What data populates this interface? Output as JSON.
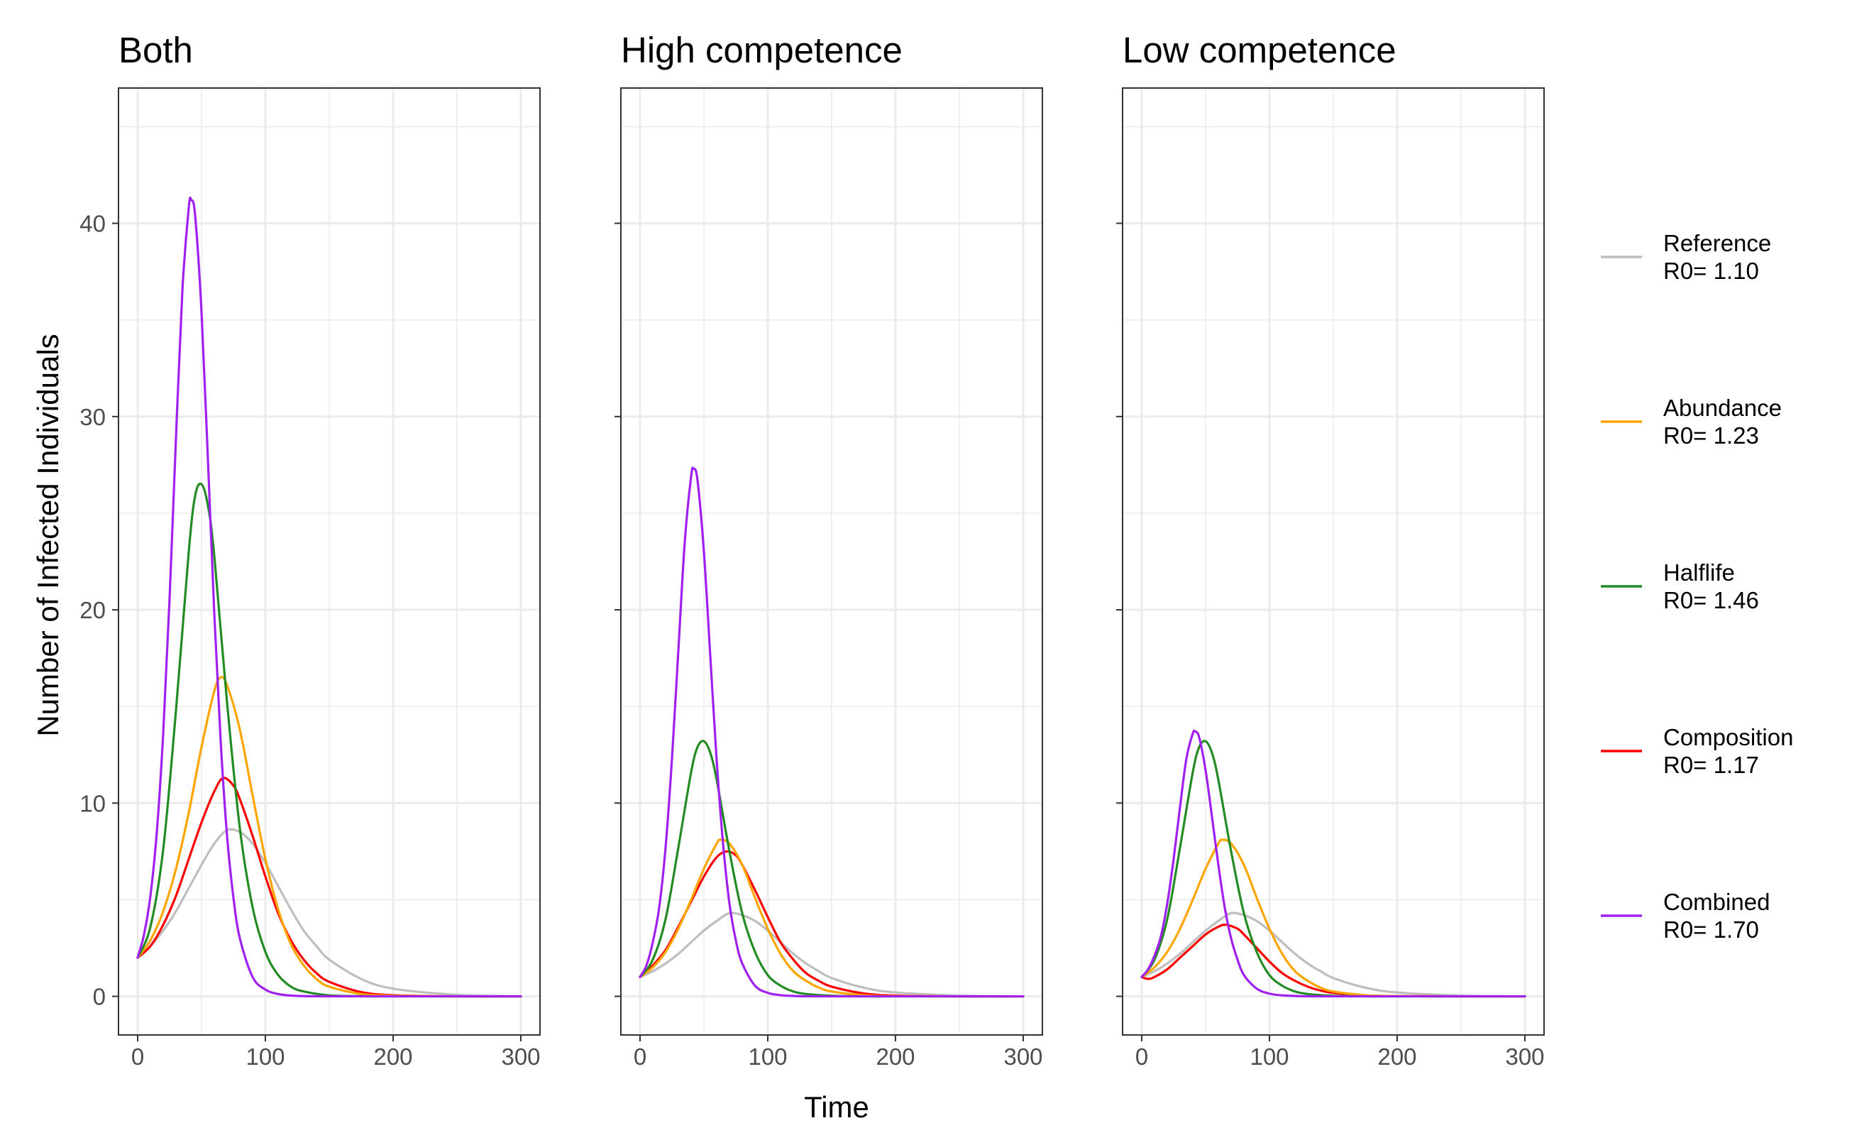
{
  "chart_data": {
    "type": "line",
    "xlabel": "Time",
    "ylabel": "Number of Infected Individuals",
    "xlim": [
      -15,
      315
    ],
    "ylim": [
      -2,
      47
    ],
    "x_ticks": [
      0,
      100,
      200,
      300
    ],
    "y_ticks": [
      0,
      10,
      20,
      30,
      40
    ],
    "x_tick_labels": [
      "0",
      "100",
      "200",
      "300"
    ],
    "y_tick_labels": [
      "0",
      "10",
      "20",
      "30",
      "40"
    ],
    "grid": true,
    "legend_position": "right",
    "legend": [
      {
        "line1": "Reference",
        "line2": "R0= 1.10",
        "color": "#bebebe"
      },
      {
        "line1": "Abundance",
        "line2": "R0= 1.23",
        "color": "#ffa500"
      },
      {
        "line1": "Halflife",
        "line2": "R0= 1.46",
        "color": "#228b22"
      },
      {
        "line1": "Composition",
        "line2": "R0= 1.17",
        "color": "#ff0000"
      },
      {
        "line1": "Combined",
        "line2": "R0= 1.70",
        "color": "#a020f0"
      }
    ],
    "panels": [
      {
        "title": "Both",
        "series": [
          {
            "key": "reference",
            "color": "#bebebe",
            "x": [
              0,
              10,
              20,
              30,
              40,
              50,
              60,
              70,
              80,
              90,
              100,
              110,
              120,
              130,
              140,
              150,
              175,
              200,
              250,
              300
            ],
            "y": [
              2.0,
              2.6,
              3.4,
              4.4,
              5.6,
              6.8,
              7.9,
              8.6,
              8.5,
              7.9,
              6.9,
              5.7,
              4.5,
              3.4,
              2.6,
              1.9,
              0.9,
              0.4,
              0.08,
              0.01
            ]
          },
          {
            "key": "abundance",
            "color": "#ffa500",
            "x": [
              0,
              10,
              20,
              30,
              40,
              50,
              60,
              65,
              70,
              80,
              90,
              100,
              110,
              120,
              130,
              140,
              150,
              175,
              200,
              250,
              300
            ],
            "y": [
              2.0,
              2.9,
              4.4,
              6.6,
              9.5,
              12.9,
              15.8,
              16.5,
              16.1,
              13.8,
              10.4,
              7.1,
              4.5,
              2.7,
              1.6,
              0.9,
              0.5,
              0.12,
              0.03,
              0.0,
              0.0
            ]
          },
          {
            "key": "halflife",
            "color": "#228b22",
            "x": [
              0,
              10,
              20,
              30,
              40,
              45,
              50,
              55,
              60,
              70,
              80,
              90,
              100,
              110,
              120,
              130,
              150,
              175,
              200,
              300
            ],
            "y": [
              2.0,
              3.6,
              7.6,
              14.8,
              23.0,
              25.9,
              26.5,
              25.4,
              22.8,
              15.2,
              8.7,
              4.6,
              2.3,
              1.1,
              0.5,
              0.25,
              0.05,
              0.01,
              0.0,
              0.0
            ]
          },
          {
            "key": "composition",
            "color": "#ff0000",
            "x": [
              0,
              10,
              20,
              30,
              40,
              50,
              60,
              67,
              75,
              80,
              90,
              100,
              110,
              120,
              130,
              140,
              150,
              175,
              200,
              250,
              300
            ],
            "y": [
              2.0,
              2.6,
              3.7,
              5.2,
              7.1,
              9.0,
              10.6,
              11.3,
              10.9,
              10.2,
              8.3,
              6.2,
              4.3,
              2.9,
              1.9,
              1.2,
              0.75,
              0.22,
              0.06,
              0.0,
              0.0
            ]
          },
          {
            "key": "combined",
            "color": "#a020f0",
            "x": [
              0,
              5,
              10,
              15,
              20,
              25,
              30,
              35,
              40,
              42,
              45,
              50,
              55,
              60,
              65,
              70,
              75,
              80,
              90,
              100,
              110,
              120,
              130,
              150,
              200,
              300
            ],
            "y": [
              2.0,
              3.2,
              5.2,
              8.5,
              13.6,
              20.6,
              28.9,
              36.5,
              40.8,
              41.2,
              40.4,
              35.4,
              27.8,
              19.8,
              13.2,
              8.3,
              5.1,
              3.0,
              1.0,
              0.35,
              0.12,
              0.04,
              0.01,
              0.0,
              0.0,
              0.0
            ]
          }
        ]
      },
      {
        "title": "High competence",
        "series": [
          {
            "key": "reference",
            "color": "#bebebe",
            "x": [
              0,
              10,
              20,
              30,
              40,
              50,
              60,
              70,
              80,
              90,
              100,
              110,
              120,
              130,
              140,
              150,
              175,
              200,
              250,
              300
            ],
            "y": [
              1.0,
              1.3,
              1.7,
              2.2,
              2.8,
              3.4,
              3.9,
              4.3,
              4.2,
              3.9,
              3.4,
              2.8,
              2.2,
              1.7,
              1.3,
              0.95,
              0.45,
              0.2,
              0.04,
              0.0
            ]
          },
          {
            "key": "abundance",
            "color": "#ffa500",
            "x": [
              0,
              10,
              20,
              30,
              40,
              50,
              60,
              63,
              70,
              80,
              90,
              100,
              110,
              120,
              130,
              140,
              150,
              175,
              200,
              250,
              300
            ],
            "y": [
              1.0,
              1.5,
              2.3,
              3.5,
              5.0,
              6.6,
              7.9,
              8.1,
              7.9,
              6.8,
              5.1,
              3.5,
              2.2,
              1.3,
              0.8,
              0.45,
              0.25,
              0.06,
              0.01,
              0.0,
              0.0
            ]
          },
          {
            "key": "halflife",
            "color": "#228b22",
            "x": [
              0,
              10,
              20,
              30,
              40,
              45,
              50,
              55,
              60,
              70,
              80,
              90,
              100,
              110,
              120,
              130,
              150,
              175,
              200,
              300
            ],
            "y": [
              1.0,
              1.9,
              4.0,
              7.7,
              11.6,
              12.9,
              13.2,
              12.6,
              11.2,
              7.5,
              4.3,
              2.3,
              1.1,
              0.55,
              0.25,
              0.12,
              0.03,
              0.0,
              0.0,
              0.0
            ]
          },
          {
            "key": "composition",
            "color": "#ff0000",
            "x": [
              0,
              10,
              20,
              30,
              40,
              50,
              60,
              68,
              75,
              80,
              90,
              100,
              110,
              120,
              130,
              140,
              150,
              175,
              200,
              250,
              300
            ],
            "y": [
              1.0,
              1.6,
              2.4,
              3.6,
              4.9,
              6.2,
              7.2,
              7.5,
              7.3,
              6.8,
              5.5,
              4.1,
              2.8,
              1.9,
              1.2,
              0.8,
              0.5,
              0.15,
              0.04,
              0.0,
              0.0
            ]
          },
          {
            "key": "combined",
            "color": "#a020f0",
            "x": [
              0,
              5,
              10,
              15,
              20,
              25,
              30,
              35,
              40,
              42,
              45,
              50,
              55,
              60,
              65,
              70,
              75,
              80,
              90,
              100,
              110,
              120,
              130,
              150,
              200,
              300
            ],
            "y": [
              1.0,
              1.6,
              2.8,
              4.6,
              7.7,
              12.3,
              17.9,
              23.5,
              26.9,
              27.3,
              26.7,
              23.0,
              17.6,
              12.2,
              7.9,
              4.8,
              2.9,
              1.7,
              0.55,
              0.18,
              0.06,
              0.02,
              0.0,
              0.0,
              0.0,
              0.0
            ]
          }
        ]
      },
      {
        "title": "Low competence",
        "series": [
          {
            "key": "reference",
            "color": "#bebebe",
            "x": [
              0,
              10,
              20,
              30,
              40,
              50,
              60,
              70,
              80,
              90,
              100,
              110,
              120,
              130,
              140,
              150,
              175,
              200,
              250,
              300
            ],
            "y": [
              1.0,
              1.3,
              1.7,
              2.2,
              2.8,
              3.4,
              3.9,
              4.3,
              4.2,
              3.9,
              3.4,
              2.8,
              2.2,
              1.7,
              1.3,
              0.95,
              0.45,
              0.2,
              0.04,
              0.0
            ]
          },
          {
            "key": "abundance",
            "color": "#ffa500",
            "x": [
              0,
              10,
              20,
              30,
              40,
              50,
              60,
              63,
              70,
              80,
              90,
              100,
              110,
              120,
              130,
              140,
              150,
              175,
              200,
              250,
              300
            ],
            "y": [
              1.0,
              1.5,
              2.3,
              3.5,
              5.0,
              6.6,
              7.9,
              8.1,
              7.9,
              6.8,
              5.1,
              3.5,
              2.2,
              1.3,
              0.8,
              0.45,
              0.25,
              0.06,
              0.01,
              0.0,
              0.0
            ]
          },
          {
            "key": "halflife",
            "color": "#228b22",
            "x": [
              0,
              10,
              20,
              30,
              40,
              45,
              50,
              55,
              60,
              70,
              80,
              90,
              100,
              110,
              120,
              130,
              150,
              175,
              200,
              300
            ],
            "y": [
              1.0,
              1.9,
              4.0,
              7.7,
              11.6,
              12.9,
              13.2,
              12.6,
              11.2,
              7.5,
              4.3,
              2.3,
              1.1,
              0.55,
              0.25,
              0.12,
              0.03,
              0.0,
              0.0,
              0.0
            ]
          },
          {
            "key": "composition",
            "color": "#ff0000",
            "x": [
              0,
              5,
              10,
              20,
              30,
              40,
              50,
              60,
              66,
              75,
              80,
              90,
              100,
              110,
              120,
              130,
              140,
              150,
              175,
              200,
              250,
              300
            ],
            "y": [
              1.0,
              0.9,
              1.0,
              1.4,
              2.0,
              2.6,
              3.2,
              3.6,
              3.7,
              3.5,
              3.2,
              2.5,
              1.8,
              1.2,
              0.8,
              0.5,
              0.3,
              0.18,
              0.05,
              0.01,
              0.0,
              0.0
            ]
          },
          {
            "key": "combined",
            "color": "#a020f0",
            "x": [
              0,
              5,
              10,
              15,
              20,
              25,
              30,
              35,
              40,
              42,
              45,
              50,
              55,
              60,
              65,
              70,
              75,
              80,
              90,
              100,
              110,
              120,
              130,
              150,
              200,
              300
            ],
            "y": [
              1.0,
              1.4,
              2.1,
              3.1,
              4.8,
              7.1,
              9.8,
              12.3,
              13.6,
              13.7,
              13.4,
              11.7,
              9.3,
              6.8,
              4.6,
              3.0,
              1.9,
              1.1,
              0.4,
              0.14,
              0.05,
              0.02,
              0.0,
              0.0,
              0.0,
              0.0
            ]
          }
        ]
      }
    ]
  }
}
